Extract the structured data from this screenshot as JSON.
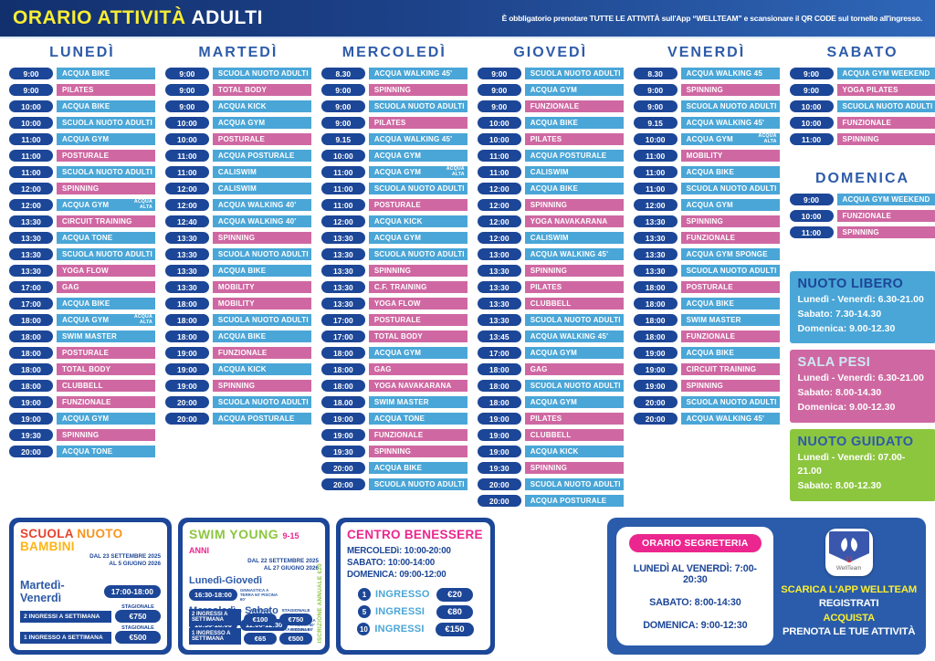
{
  "header": {
    "title_main": "ORARIO ATTIVITÀ",
    "title_sub": "ADULTI",
    "notice": "È obbligatorio prenotare TUTTE LE ATTIVITÀ sull'App “WELLTEAM” e scansionare il QR CODE sul tornello all'ingresso."
  },
  "colors": {
    "navy": "#1c4697",
    "water_blue": "#4aa6d7",
    "land_pink": "#cf68a2",
    "green": "#8cc63f",
    "magenta": "#ec268f",
    "yellow": "#f9ed32"
  },
  "days": [
    {
      "id": "lunedi",
      "label": "LUNEDÌ",
      "rows": [
        [
          "9:00",
          "ACQUA BIKE",
          "b"
        ],
        [
          "9:00",
          "PILATES",
          "p"
        ],
        [
          "10:00",
          "ACQUA BIKE",
          "b"
        ],
        [
          "10:00",
          "SCUOLA NUOTO ADULTI",
          "b"
        ],
        [
          "11:00",
          "ACQUA GYM",
          "b"
        ],
        [
          "11:00",
          "POSTURALE",
          "p"
        ],
        [
          "11:00",
          "SCUOLA NUOTO ADULTI",
          "b"
        ],
        [
          "12:00",
          "SPINNING",
          "p"
        ],
        [
          "12:00",
          "ACQUA GYM",
          "b",
          "ACQUA ALTA"
        ],
        [
          "13:30",
          "CIRCUIT TRAINING",
          "p"
        ],
        [
          "13:30",
          "ACQUA TONE",
          "b"
        ],
        [
          "13:30",
          "SCUOLA NUOTO ADULTI",
          "b"
        ],
        [
          "13:30",
          "YOGA FLOW",
          "p"
        ],
        [
          "17:00",
          "GAG",
          "p"
        ],
        [
          "17:00",
          "ACQUA BIKE",
          "b"
        ],
        [
          "18:00",
          "ACQUA GYM",
          "b",
          "ACQUA ALTA"
        ],
        [
          "18:00",
          "SWIM MASTER",
          "b"
        ],
        [
          "18:00",
          "POSTURALE",
          "p"
        ],
        [
          "18:00",
          "TOTAL BODY",
          "p"
        ],
        [
          "18:00",
          "CLUBBELL",
          "p"
        ],
        [
          "19:00",
          "FUNZIONALE",
          "p"
        ],
        [
          "19:00",
          "ACQUA GYM",
          "b"
        ],
        [
          "19:30",
          "SPINNING",
          "p"
        ],
        [
          "20:00",
          "ACQUA TONE",
          "b"
        ]
      ]
    },
    {
      "id": "martedi",
      "label": "MARTEDÌ",
      "rows": [
        [
          "9:00",
          "SCUOLA NUOTO ADULTI",
          "b"
        ],
        [
          "9:00",
          "TOTAL BODY",
          "p"
        ],
        [
          "9:00",
          "ACQUA KICK",
          "b"
        ],
        [
          "10:00",
          "ACQUA GYM",
          "b"
        ],
        [
          "10:00",
          "POSTURALE",
          "p"
        ],
        [
          "11:00",
          "ACQUA POSTURALE",
          "b"
        ],
        [
          "11:00",
          "CALISWIM",
          "b"
        ],
        [
          "12:00",
          "CALISWIM",
          "b"
        ],
        [
          "12:00",
          "ACQUA WALKING 40'",
          "b"
        ],
        [
          "12:40",
          "ACQUA WALKING 40'",
          "b"
        ],
        [
          "13:30",
          "SPINNING",
          "p"
        ],
        [
          "13:30",
          "SCUOLA NUOTO ADULTI",
          "b"
        ],
        [
          "13:30",
          "ACQUA BIKE",
          "b"
        ],
        [
          "13:30",
          "MOBILITY",
          "p"
        ],
        [
          "18:00",
          "MOBILITY",
          "p"
        ],
        [
          "18:00",
          "SCUOLA NUOTO ADULTI",
          "b"
        ],
        [
          "18:00",
          "ACQUA BIKE",
          "b"
        ],
        [
          "19:00",
          "FUNZIONALE",
          "p"
        ],
        [
          "19:00",
          "ACQUA KICK",
          "b"
        ],
        [
          "19:00",
          "SPINNING",
          "p"
        ],
        [
          "20:00",
          "SCUOLA NUOTO ADULTI",
          "b"
        ],
        [
          "20:00",
          "ACQUA POSTURALE",
          "b"
        ]
      ]
    },
    {
      "id": "mercoledi",
      "label": "MERCOLEDÌ",
      "rows": [
        [
          "8.30",
          "ACQUA WALKING 45'",
          "b"
        ],
        [
          "9:00",
          "SPINNING",
          "p"
        ],
        [
          "9:00",
          "SCUOLA NUOTO ADULTI",
          "b"
        ],
        [
          "9:00",
          "PILATES",
          "p"
        ],
        [
          "9.15",
          "ACQUA WALKING 45'",
          "b"
        ],
        [
          "10:00",
          "ACQUA GYM",
          "b"
        ],
        [
          "11:00",
          "ACQUA GYM",
          "b",
          "ACQUA ALTA"
        ],
        [
          "11:00",
          "SCUOLA NUOTO ADULTI",
          "b"
        ],
        [
          "11:00",
          "POSTURALE",
          "p"
        ],
        [
          "12:00",
          "ACQUA KICK",
          "b"
        ],
        [
          "13:30",
          "ACQUA GYM",
          "b"
        ],
        [
          "13:30",
          "SCUOLA NUOTO ADULTI",
          "b"
        ],
        [
          "13:30",
          "SPINNING",
          "p"
        ],
        [
          "13:30",
          "C.F. TRAINING",
          "p"
        ],
        [
          "13:30",
          "YOGA FLOW",
          "p"
        ],
        [
          "17:00",
          "POSTURALE",
          "p"
        ],
        [
          "17:00",
          "TOTAL BODY",
          "p"
        ],
        [
          "18:00",
          "ACQUA GYM",
          "b"
        ],
        [
          "18:00",
          "GAG",
          "p"
        ],
        [
          "18:00",
          "YOGA NAVAKARANA",
          "p"
        ],
        [
          "18.00",
          "SWIM MASTER",
          "b"
        ],
        [
          "19:00",
          "ACQUA TONE",
          "b"
        ],
        [
          "19:00",
          "FUNZIONALE",
          "p"
        ],
        [
          "19:30",
          "SPINNING",
          "p"
        ],
        [
          "20:00",
          "ACQUA BIKE",
          "b"
        ],
        [
          "20:00",
          "SCUOLA NUOTO ADULTI",
          "b"
        ]
      ]
    },
    {
      "id": "giovedi",
      "label": "GIOVEDÌ",
      "rows": [
        [
          "9:00",
          "SCUOLA NUOTO ADULTI",
          "b"
        ],
        [
          "9:00",
          "ACQUA GYM",
          "b"
        ],
        [
          "9:00",
          "FUNZIONALE",
          "p"
        ],
        [
          "10:00",
          "ACQUA BIKE",
          "b"
        ],
        [
          "10:00",
          "PILATES",
          "p"
        ],
        [
          "11:00",
          "ACQUA POSTURALE",
          "b"
        ],
        [
          "11:00",
          "CALISWIM",
          "b"
        ],
        [
          "12:00",
          "ACQUA BIKE",
          "b"
        ],
        [
          "12:00",
          "SPINNING",
          "p"
        ],
        [
          "12:00",
          "YOGA NAVAKARANA",
          "p"
        ],
        [
          "12:00",
          "CALISWIM",
          "b"
        ],
        [
          "13:00",
          "ACQUA WALKING 45'",
          "b"
        ],
        [
          "13:30",
          "SPINNING",
          "p"
        ],
        [
          "13:30",
          "PILATES",
          "p"
        ],
        [
          "13:30",
          "CLUBBELL",
          "p"
        ],
        [
          "13:30",
          "SCUOLA NUOTO ADULTI",
          "b"
        ],
        [
          "13:45",
          "ACQUA WALKING 45'",
          "b"
        ],
        [
          "17:00",
          "ACQUA GYM",
          "b"
        ],
        [
          "18:00",
          "GAG",
          "p"
        ],
        [
          "18:00",
          "SCUOLA NUOTO ADULTI",
          "b"
        ],
        [
          "18:00",
          "ACQUA GYM",
          "b"
        ],
        [
          "19:00",
          "PILATES",
          "p"
        ],
        [
          "19:00",
          "CLUBBELL",
          "p"
        ],
        [
          "19:00",
          "ACQUA KICK",
          "b"
        ],
        [
          "19:30",
          "SPINNING",
          "p"
        ],
        [
          "20:00",
          "SCUOLA NUOTO ADULTI",
          "b"
        ],
        [
          "20:00",
          "ACQUA POSTURALE",
          "b"
        ]
      ]
    },
    {
      "id": "venerdi",
      "label": "VENERDÌ",
      "rows": [
        [
          "8.30",
          "ACQUA WALKING 45",
          "b"
        ],
        [
          "9:00",
          "SPINNING",
          "p"
        ],
        [
          "9:00",
          "SCUOLA NUOTO ADULTI",
          "b"
        ],
        [
          "9.15",
          "ACQUA WALKING 45'",
          "b"
        ],
        [
          "10:00",
          "ACQUA GYM",
          "b",
          "ACQUA ALTA"
        ],
        [
          "11:00",
          "MOBILITY",
          "p"
        ],
        [
          "11:00",
          "ACQUA BIKE",
          "b"
        ],
        [
          "11:00",
          "SCUOLA NUOTO ADULTI",
          "b"
        ],
        [
          "12:00",
          "ACQUA GYM",
          "b"
        ],
        [
          "13:30",
          "SPINNING",
          "p"
        ],
        [
          "13:30",
          "FUNZIONALE",
          "p"
        ],
        [
          "13:30",
          "ACQUA GYM SPONGE",
          "b"
        ],
        [
          "13:30",
          "SCUOLA NUOTO ADULTI",
          "b"
        ],
        [
          "18:00",
          "POSTURALE",
          "p"
        ],
        [
          "18:00",
          "ACQUA BIKE",
          "b"
        ],
        [
          "18:00",
          "SWIM MASTER",
          "b"
        ],
        [
          "18:00",
          "FUNZIONALE",
          "p"
        ],
        [
          "19:00",
          "ACQUA BIKE",
          "b"
        ],
        [
          "19:00",
          "CIRCUIT TRAINING",
          "p"
        ],
        [
          "19:00",
          "SPINNING",
          "p"
        ],
        [
          "20:00",
          "SCUOLA NUOTO ADULTI",
          "b"
        ],
        [
          "20:00",
          "ACQUA WALKING 45'",
          "b"
        ]
      ]
    },
    {
      "id": "sabato",
      "label": "SABATO",
      "rows": [
        [
          "9:00",
          "ACQUA GYM WEEKEND",
          "b"
        ],
        [
          "9:00",
          "YOGA PILATES",
          "p"
        ],
        [
          "10:00",
          "SCUOLA NUOTO ADULTI",
          "b"
        ],
        [
          "10:00",
          "FUNZIONALE",
          "p"
        ],
        [
          "11:00",
          "SPINNING",
          "p"
        ]
      ]
    },
    {
      "id": "domenica",
      "label": "DOMENICA",
      "rows": [
        [
          "9:00",
          "ACQUA GYM WEEKEND",
          "b"
        ],
        [
          "10:00",
          "FUNZIONALE",
          "p"
        ],
        [
          "11:00",
          "SPINNING",
          "p"
        ]
      ]
    }
  ],
  "info_boxes": [
    {
      "id": "nuoto-libero",
      "title": "NUOTO LIBERO",
      "style": "blue",
      "lines": [
        "Lunedì - Venerdì: 6.30-21.00",
        "Sabato: 7.30-14.30",
        "Domenica: 9.00-12.30"
      ]
    },
    {
      "id": "sala-pesi",
      "title": "SALA PESI",
      "style": "pink",
      "lines": [
        "Lunedì - Venerdì: 6.30-21.00",
        "Sabato: 8.00-14.30",
        "Domenica: 9.00-12.30"
      ]
    },
    {
      "id": "nuoto-guidato",
      "title": "NUOTO GUIDATO",
      "style": "green",
      "lines": [
        "Lunedì - Venerdì: 07.00-21.00",
        "Sabato: 8.00-12.30"
      ]
    }
  ],
  "bambini": {
    "title_parts": [
      {
        "text": "SCUOLA",
        "color": "#e8432d"
      },
      {
        "text": "NUOTO",
        "color": "#f7941d"
      },
      {
        "text": "BAMBINI",
        "color": "#fdb515"
      }
    ],
    "dates": "DAL 23 SETTEMBRE 2025\nAL 5 GIUGNO 2026",
    "days": "Martedì-Venerdì",
    "time": "17:00-18:00",
    "prices": [
      {
        "label": "2 INGRESSI A SETTIMANA",
        "tag": "STAGIONALE",
        "price": "€750"
      },
      {
        "label": "1 INGRESSO A SETTIMANA",
        "tag": "STAGIONALE",
        "price": "€500"
      }
    ]
  },
  "swim_young": {
    "title": "SWIM YOUNG",
    "age": "9-15 ANNI",
    "dates": "DAL 22 SETTEMBRE 2025\nAL 27 GIUGNO 2026",
    "slot1_days": "Lunedì-Giovedì",
    "slot1_time": "16:30-18:00",
    "slot1_note": "GINNASTICA A TERRA 50' PISCINA 60'",
    "slot2_days": "Mercoledì - Sabato",
    "slot2_times": [
      "16:30-18:00",
      "11:00-12:30"
    ],
    "slot2_note": "GINNASTICA A TERRA 50' PISCINA 60'",
    "prices": [
      {
        "label": "2 INGRESSI A SETTIMANA",
        "mensile_tag": "MENSILE",
        "mensile": "€100",
        "stagionale_tag": "STAGIONALE",
        "stagionale": "€750"
      },
      {
        "label": "1 INGRESSO A SETTIMANA",
        "mensile_tag": "MENSILE",
        "mensile": "€65",
        "stagionale_tag": "STAGIONALE",
        "stagionale": "€500"
      }
    ],
    "side_note": "ISCRIZIONE ANNUALE €20"
  },
  "benessere": {
    "title": "CENTRO BENESSERE",
    "hours": [
      "MERCOLEDì: 10:00-20:00",
      "SABATO: 10:00-14:00",
      "DOMENICA: 09:00-12:00"
    ],
    "prices": [
      {
        "n": "1",
        "label": "INGRESSO",
        "price": "€20"
      },
      {
        "n": "5",
        "label": "INGRESSI",
        "price": "€80"
      },
      {
        "n": "10",
        "label": "INGRESSI",
        "price": "€150"
      }
    ]
  },
  "segreteria": {
    "title": "ORARIO SEGRETERIA",
    "lines": [
      "LUNEDÌ AL VENERDÌ: 7:00-20:30",
      "SABATO: 8:00-14:30",
      "DOMENICA: 9:00-12:30"
    ]
  },
  "app_promo": {
    "icon_label": "WellTeam",
    "lines": [
      {
        "text": "SCARICA L'APP WELLTEAM",
        "color": "yellow"
      },
      {
        "text": "REGISTRATI",
        "color": "white"
      },
      {
        "text": "ACQUISTA",
        "color": "yellow"
      },
      {
        "text": "PRENOTA LE TUE ATTIVITÀ",
        "color": "white"
      }
    ]
  }
}
